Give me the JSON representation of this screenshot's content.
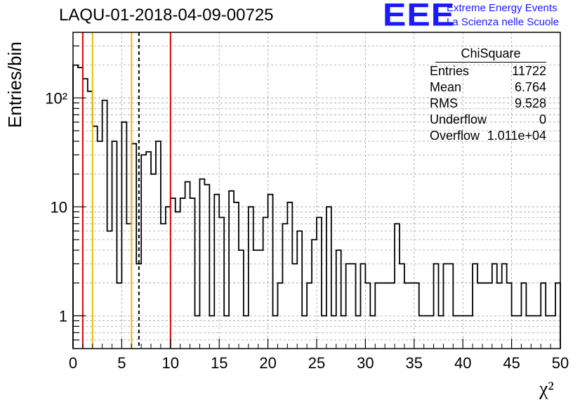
{
  "header": {
    "run_title": "LAQU-01-2018-04-09-00725",
    "logo_text": "EEE",
    "tagline_1": "Extreme Energy Events",
    "tagline_2": "La Scienza nelle Scuole"
  },
  "stats_box": {
    "title": "ChiSquare",
    "rows": [
      {
        "label": "Entries",
        "value": "11722"
      },
      {
        "label": "Mean",
        "value": "6.764"
      },
      {
        "label": "RMS",
        "value": "9.528"
      },
      {
        "label": "Underflow",
        "value": "0"
      },
      {
        "label": "Overflow",
        "value": "1.011e+04"
      }
    ]
  },
  "colors": {
    "histogram": "#000000",
    "red_line": "#e00000",
    "yellow_line": "#f0b800",
    "grid": "#a0a0a0",
    "logo": "#1a1aff"
  },
  "chart_data": {
    "type": "bar",
    "title": "LAQU-01-2018-04-09-00725",
    "xlabel": "χ²",
    "ylabel": "Entries/bin",
    "xlim": [
      0,
      50
    ],
    "ylim": [
      0.5,
      400
    ],
    "y_scale": "log",
    "grid": true,
    "x_ticks": [
      0,
      5,
      10,
      15,
      20,
      25,
      30,
      35,
      40,
      45,
      50
    ],
    "y_tick_labels": [
      "1",
      "10",
      "10²"
    ],
    "bin_width": 0.5,
    "series": [
      {
        "values": [
          200,
          190,
          150,
          115,
          55,
          40,
          95,
          6,
          40,
          2,
          60,
          7,
          38,
          3,
          30,
          32,
          20,
          40,
          7,
          10,
          12,
          9,
          12,
          17,
          12,
          1,
          18,
          16,
          1,
          13,
          8,
          1,
          14,
          11,
          4,
          1,
          10,
          4,
          4,
          8,
          13,
          1,
          2,
          7,
          11,
          3,
          6,
          1,
          2,
          5,
          8,
          1,
          10,
          1,
          4,
          1,
          3,
          3,
          1,
          3,
          2,
          1,
          2,
          2,
          2,
          2,
          7,
          3,
          2,
          2,
          2,
          1,
          1,
          1,
          3,
          1,
          3,
          3,
          1,
          1,
          1,
          1,
          3,
          2,
          2,
          2,
          3,
          2,
          3,
          2,
          1,
          1,
          2,
          1,
          1,
          1,
          2,
          1,
          1,
          2
        ]
      }
    ],
    "vertical_lines": [
      {
        "x": 1,
        "color": "red",
        "style": "solid"
      },
      {
        "x": 2,
        "color": "yellow",
        "style": "solid"
      },
      {
        "x": 6,
        "color": "yellow",
        "style": "solid"
      },
      {
        "x": 6.764,
        "color": "black",
        "style": "dashed"
      },
      {
        "x": 10,
        "color": "red",
        "style": "solid"
      }
    ]
  }
}
